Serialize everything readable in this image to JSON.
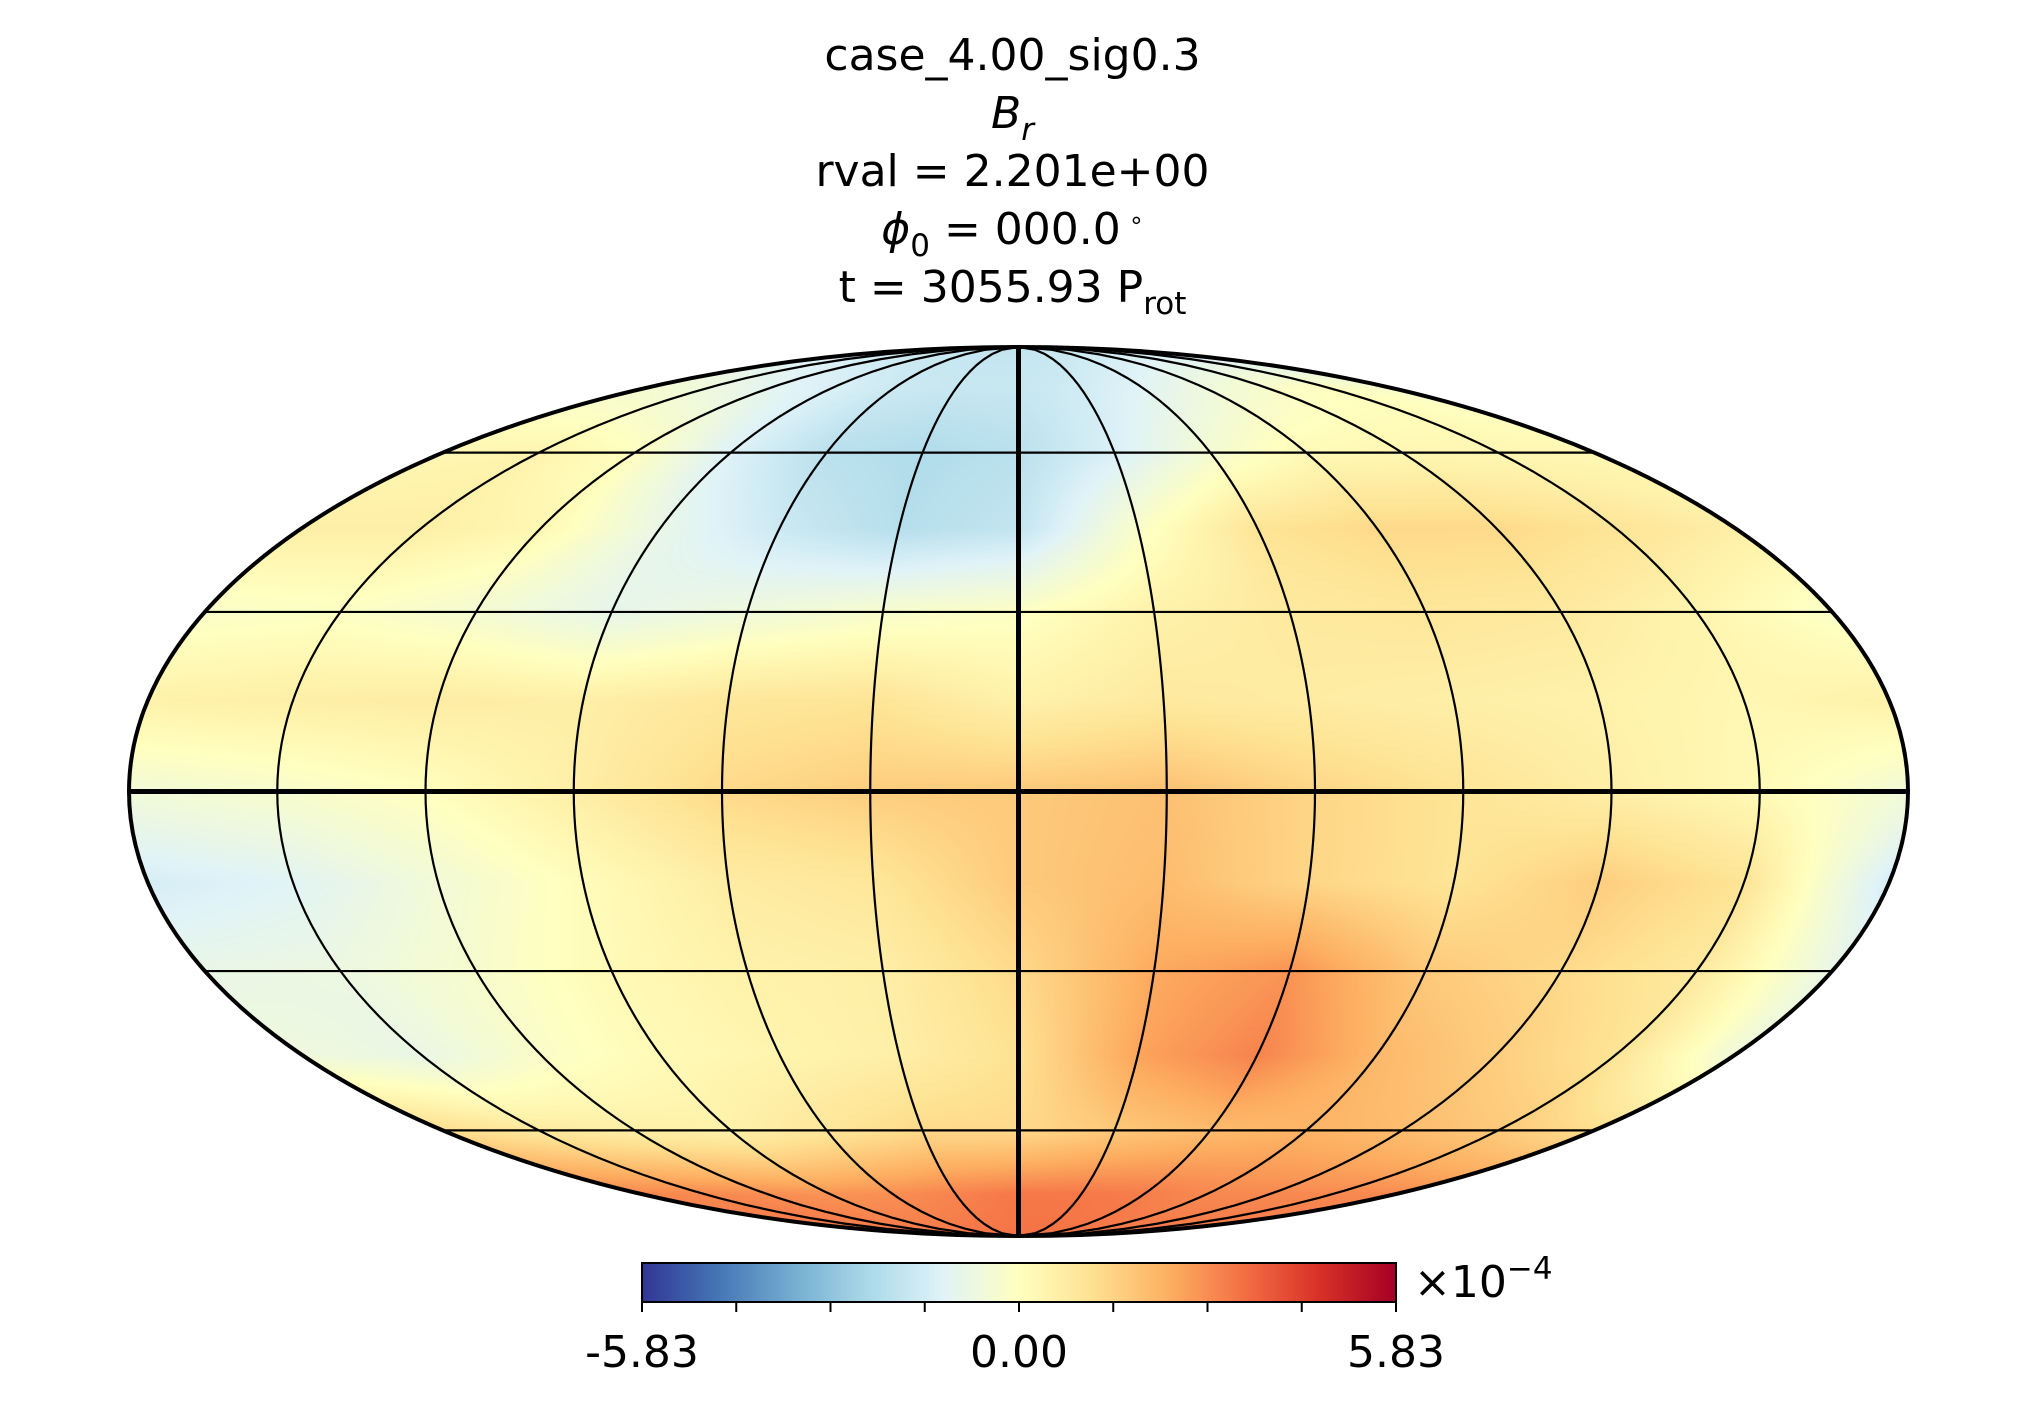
{
  "chart_data": {
    "type": "heatmap",
    "projection": "mollweide",
    "title_lines": {
      "case": "case_4.00_sig0.3",
      "quantity_symbol": "B",
      "quantity_subscript": "r",
      "rval": "rval = 2.201e+00",
      "phi_symbol": "ϕ",
      "phi_subscript": "0",
      "phi_value": " = 000.0",
      "phi_degree": "∘",
      "time_prefix": "t = 3055.93 P",
      "time_subscript": "rot"
    },
    "colormap": "RdYlBu_r",
    "colormap_stops": [
      "#313695",
      "#4575b4",
      "#74add1",
      "#abd9e9",
      "#e0f3f8",
      "#ffffbf",
      "#fee090",
      "#fdae61",
      "#f46d43",
      "#d73027",
      "#a50026"
    ],
    "value_range": [
      -0.000583,
      0.000583
    ],
    "colorbar": {
      "tick_labels": [
        "-5.83",
        "0.00",
        "5.83"
      ],
      "minor_ticks": 7,
      "exponent_prefix": "×10",
      "exponent": "−4"
    },
    "grid": {
      "parallels_deg": [
        -60,
        -30,
        0,
        30,
        60
      ],
      "meridians_deg": [
        -150,
        -120,
        -90,
        -60,
        -30,
        0,
        30,
        60,
        90,
        120,
        150
      ],
      "bold_lines": [
        "equator",
        "central-meridian"
      ]
    },
    "field_samples": {
      "lat": [
        90,
        75,
        60,
        45,
        30,
        15,
        0,
        -15,
        -30,
        -45,
        -60,
        -75,
        -90
      ],
      "lon": [
        -180,
        -150,
        -120,
        -90,
        -60,
        -30,
        0,
        30,
        60,
        90,
        120,
        150,
        180
      ],
      "values_scaled_1e-4": [
        [
          -1.8,
          -1.8,
          -1.8,
          -1.8,
          -1.8,
          -1.8,
          -1.8,
          -1.8,
          -1.8,
          -1.8,
          -1.8,
          -1.8,
          -1.8
        ],
        [
          -0.3,
          -0.6,
          -1.0,
          -1.3,
          -1.6,
          -1.7,
          -1.7,
          -1.5,
          -1.1,
          -0.6,
          -0.2,
          0.0,
          -0.3
        ],
        [
          0.3,
          0.4,
          0.0,
          -1.2,
          -2.0,
          -2.2,
          -2.0,
          -1.3,
          -0.4,
          0.2,
          0.3,
          0.3,
          0.3
        ],
        [
          0.6,
          0.6,
          0.3,
          -0.8,
          -1.6,
          -2.1,
          -1.8,
          -0.2,
          1.0,
          1.3,
          1.3,
          1.0,
          0.6
        ],
        [
          -0.2,
          -0.1,
          -0.4,
          -0.9,
          -0.6,
          -0.3,
          -0.1,
          0.5,
          0.8,
          0.9,
          0.8,
          0.4,
          -0.2
        ],
        [
          0.5,
          0.6,
          0.7,
          0.6,
          0.9,
          1.0,
          0.5,
          0.8,
          0.7,
          0.6,
          0.5,
          0.3,
          0.5
        ],
        [
          -0.5,
          -0.3,
          0.0,
          0.6,
          1.3,
          1.6,
          1.7,
          1.9,
          1.4,
          1.0,
          0.6,
          0.2,
          -0.5
        ],
        [
          -1.4,
          -1.1,
          -0.5,
          0.1,
          0.7,
          0.9,
          1.7,
          2.0,
          1.4,
          1.0,
          1.6,
          1.0,
          -1.4
        ],
        [
          -0.8,
          -0.7,
          -0.3,
          0.2,
          0.5,
          0.6,
          1.3,
          2.4,
          2.8,
          1.7,
          1.3,
          0.8,
          -0.8
        ],
        [
          -0.6,
          -0.8,
          -0.2,
          0.2,
          0.4,
          0.6,
          1.1,
          2.5,
          3.1,
          2.1,
          1.6,
          1.0,
          -0.6
        ],
        [
          1.2,
          0.8,
          0.6,
          0.5,
          0.9,
          1.3,
          1.3,
          1.7,
          2.0,
          2.2,
          2.0,
          1.7,
          1.2
        ],
        [
          3.0,
          3.0,
          2.9,
          2.8,
          2.9,
          3.1,
          3.3,
          3.3,
          3.2,
          3.0,
          3.0,
          3.0,
          3.0
        ],
        [
          3.4,
          3.4,
          3.4,
          3.4,
          3.4,
          3.4,
          3.4,
          3.4,
          3.4,
          3.4,
          3.4,
          3.4,
          3.4
        ]
      ]
    }
  }
}
